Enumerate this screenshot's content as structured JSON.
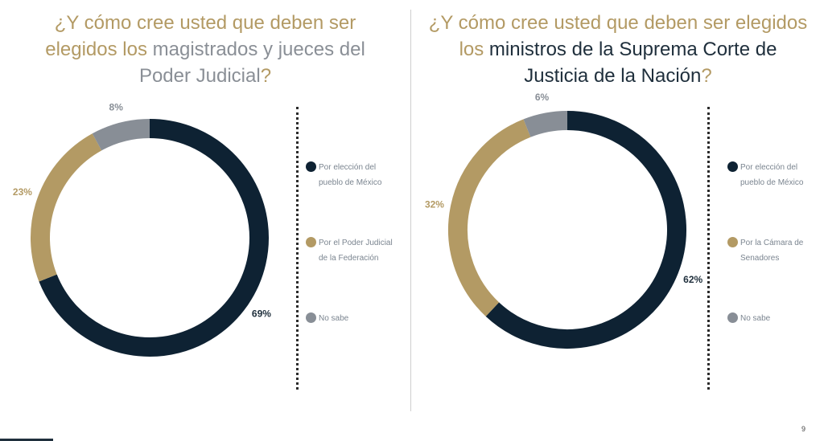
{
  "page_number": "9",
  "colors": {
    "dark": "#0e2233",
    "gold": "#b39a64",
    "grey": "#888e96"
  },
  "chart_data": [
    {
      "type": "donut",
      "title": "¿Y cómo cree usted que deben ser elegidos los magistrados y jueces del Poder Judicial?",
      "title_parts": {
        "p1": "¿Y cómo cree usted que deben ser",
        "p2a": "elegidos los ",
        "p2b": "magistrados y jueces del",
        "p3a": "Poder Judicial",
        "p3b": "?"
      },
      "series": [
        {
          "name": "Por elección del pueblo de México",
          "value": 69,
          "label": "69%",
          "color": "#0e2233"
        },
        {
          "name": "Por el Poder Judicial de la Federación",
          "value": 23,
          "label": "23%",
          "color": "#b39a64"
        },
        {
          "name": "No sabe",
          "value": 8,
          "label": "8%",
          "color": "#888e96"
        }
      ],
      "legend_lines": [
        [
          "Por elección del",
          "pueblo de México"
        ],
        [
          "Por el Poder Judicial",
          "de la Federación"
        ],
        [
          "No sabe"
        ]
      ]
    },
    {
      "type": "donut",
      "title": "¿Y cómo cree usted que deben ser elegidos los ministros de la Suprema Corte de Justicia de la Nación?",
      "title_parts": {
        "p1": "¿Y cómo cree usted que deben ser elegidos",
        "p2a": "los ",
        "p2b": "ministros de la Suprema Corte de",
        "p3a": "Justicia de la Nación",
        "p3b": "?"
      },
      "series": [
        {
          "name": "Por elección del pueblo de México",
          "value": 62,
          "label": "62%",
          "color": "#0e2233"
        },
        {
          "name": "Por la Cámara de Senadores",
          "value": 32,
          "label": "32%",
          "color": "#b39a64"
        },
        {
          "name": "No sabe",
          "value": 6,
          "label": "6%",
          "color": "#888e96"
        }
      ],
      "legend_lines": [
        [
          "Por elección del",
          "pueblo de México"
        ],
        [
          "Por la Cámara de",
          "Senadores"
        ],
        [
          "No sabe"
        ]
      ]
    }
  ]
}
